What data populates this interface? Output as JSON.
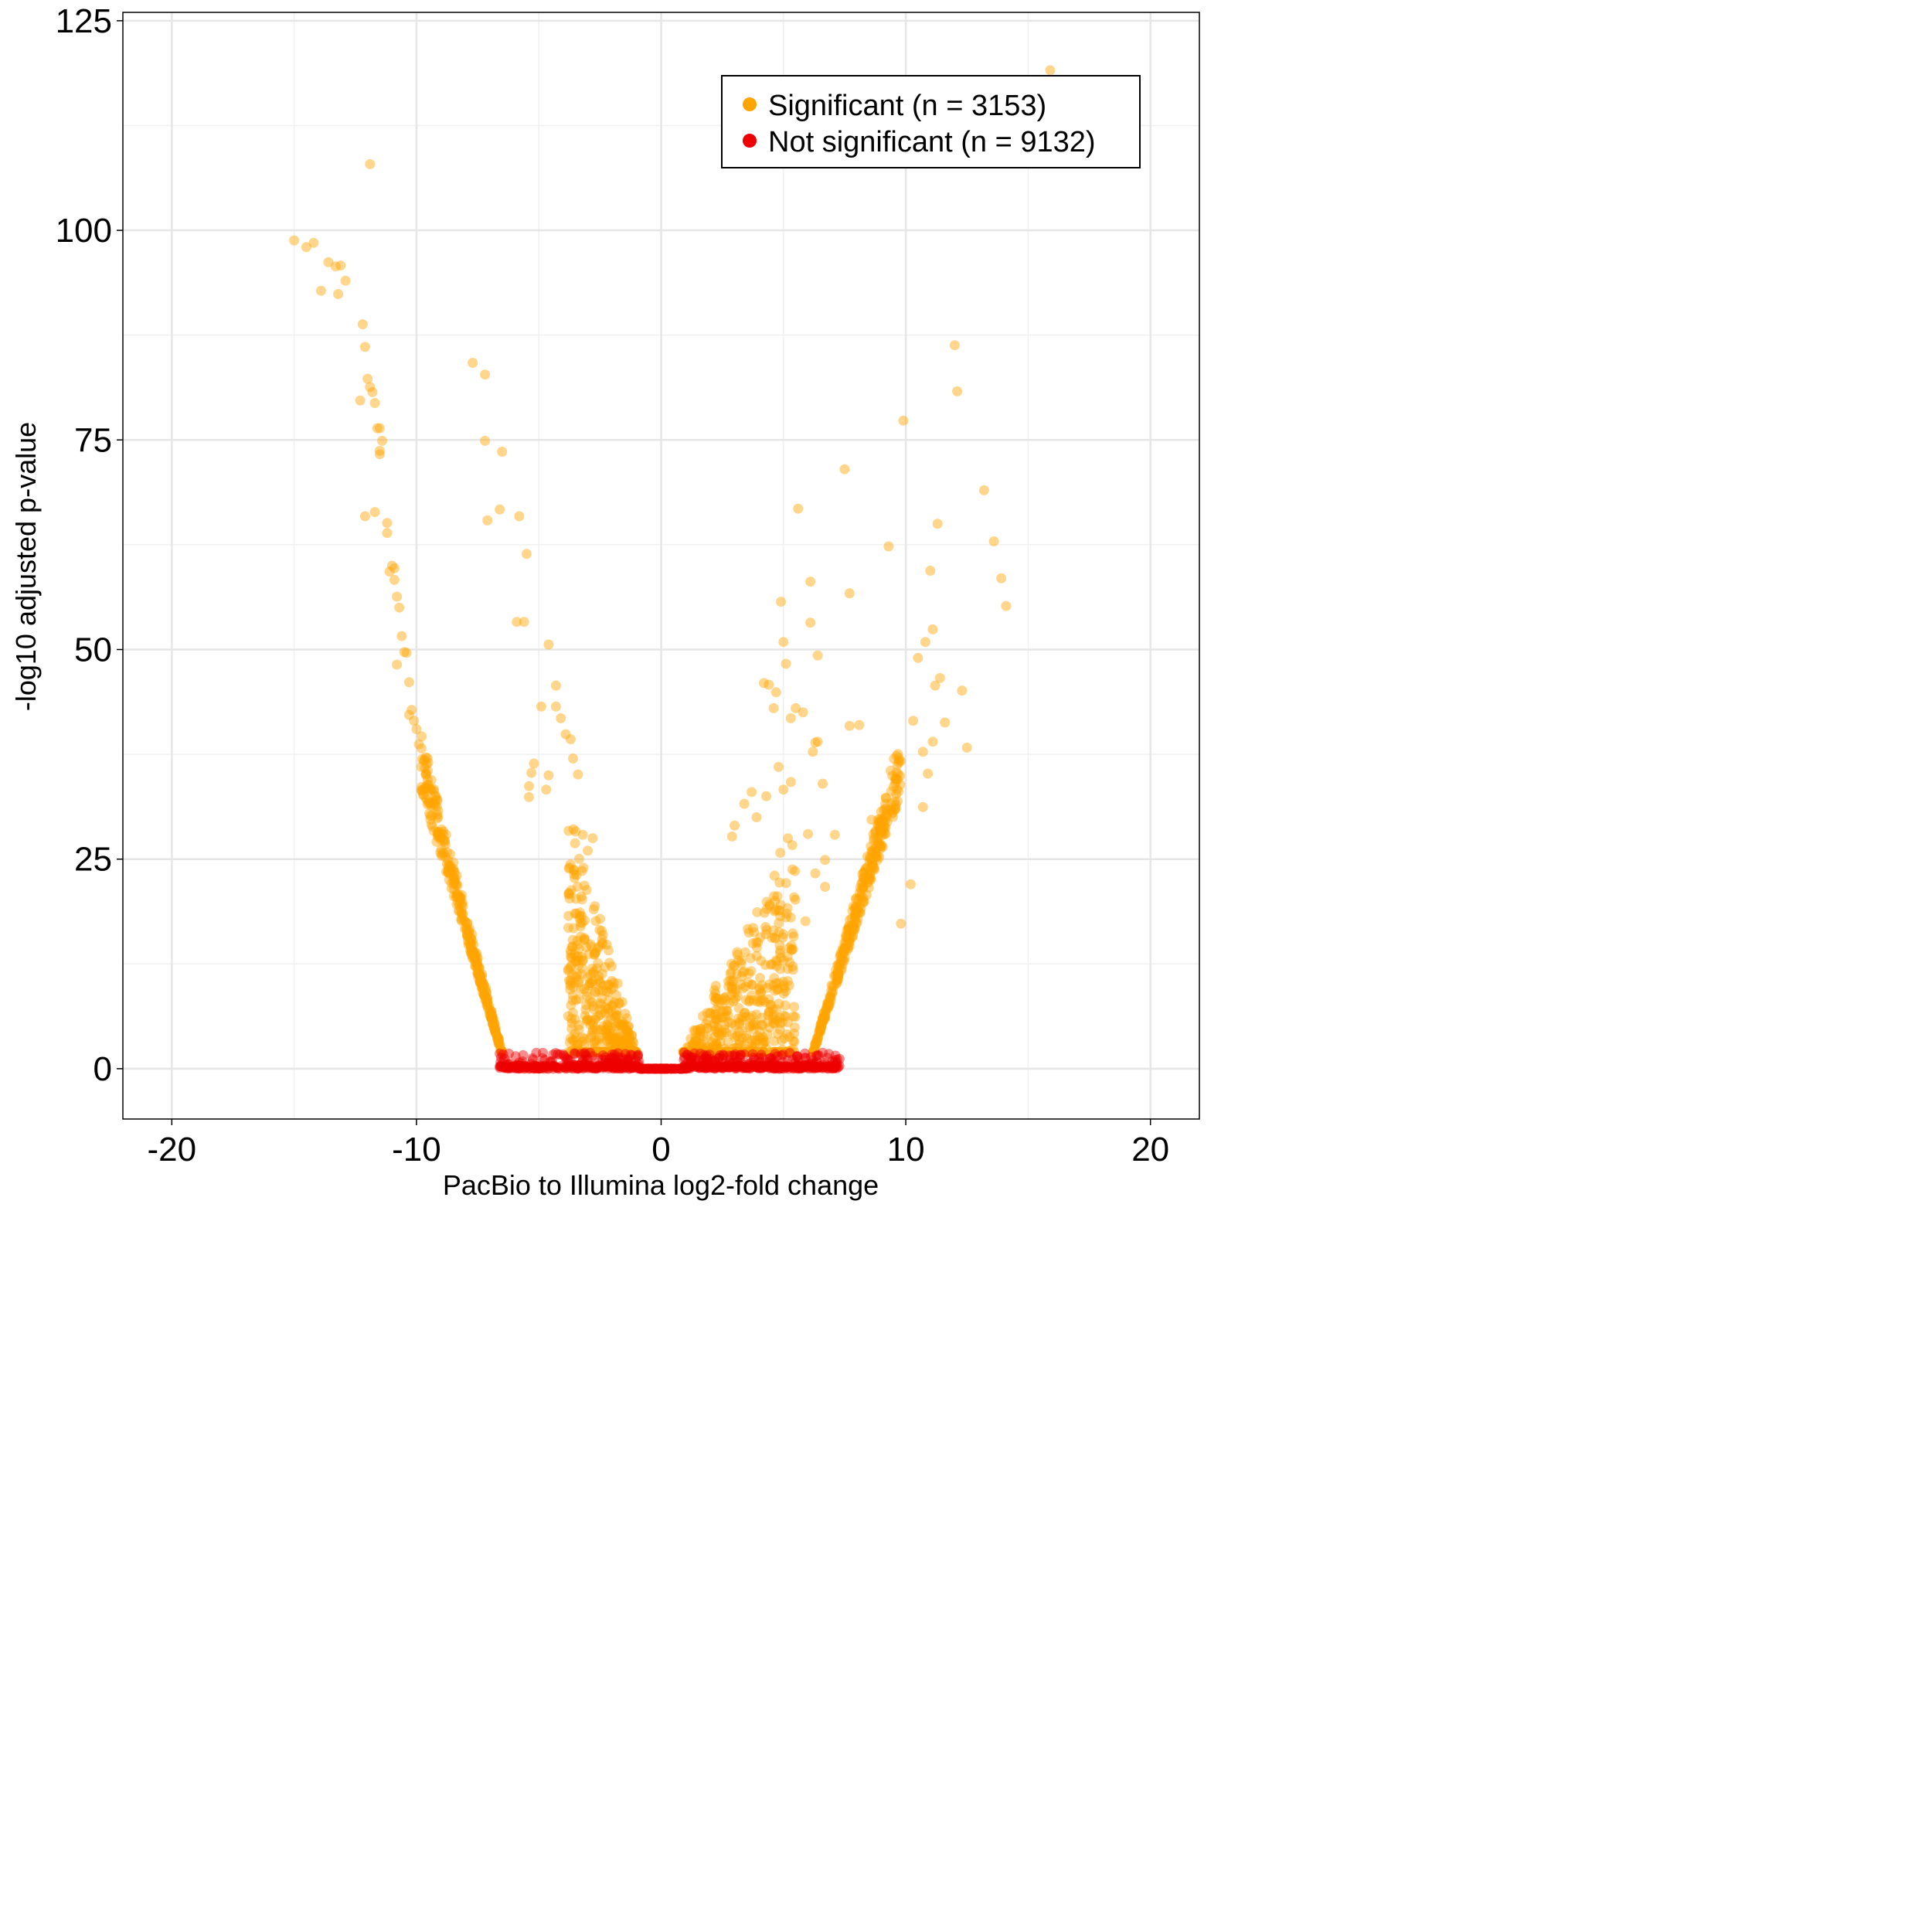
{
  "chart_data": {
    "type": "scatter",
    "title": "",
    "xlabel": "PacBio to Illumina log2-fold change",
    "ylabel": "-log10 adjusted p-value",
    "xlim": [
      -22,
      22
    ],
    "ylim": [
      -6,
      126
    ],
    "xticks": [
      -20,
      -10,
      0,
      10,
      20
    ],
    "xtick_labels": [
      "-20",
      "-10",
      "0",
      "10",
      "20"
    ],
    "yticks": [
      0,
      25,
      50,
      75,
      100,
      125
    ],
    "ytick_labels": [
      "0",
      "25",
      "50",
      "75",
      "100",
      "125"
    ],
    "grid": true,
    "legend_position": "top-right",
    "series": [
      {
        "name": "Significant (n = 3153)",
        "color": "#FFA500",
        "opacity": 0.45,
        "x": [
          -15.0,
          -14.5,
          -14.2,
          -13.9,
          -13.6,
          -13.3,
          -13.2,
          -13.1,
          -12.9,
          -12.2,
          -12.1,
          -12.0,
          -11.9,
          -12.3,
          -11.8,
          -11.7,
          -11.9,
          -11.6,
          -11.5,
          -11.4,
          -11.5,
          -11.5,
          -12.1,
          -11.7,
          -11.2,
          -11.2,
          -11.1,
          -10.9,
          -10.9,
          -11.0,
          -10.8,
          -10.7,
          -10.6,
          -10.5,
          -10.8,
          -10.4,
          -10.3,
          -10.3,
          -10.2,
          -10.1,
          -10.0,
          -9.9,
          -9.8,
          -7.7,
          -7.2,
          -7.2,
          -6.5,
          -7.1,
          -6.6,
          -5.8,
          -5.5,
          -5.9,
          -5.6,
          -4.6,
          -4.3,
          -4.9,
          -4.3,
          -4.1,
          -3.9,
          -3.7,
          -3.6,
          -3.4,
          -5.2,
          -5.3,
          -4.6,
          -5.4,
          -5.4,
          -4.7,
          -3.5,
          -3.2,
          -2.8,
          -3.0,
          5.6,
          4.9,
          6.1,
          6.1,
          5.0,
          7.5,
          7.7,
          6.4,
          5.1,
          4.7,
          4.4,
          4.2,
          4.6,
          5.5,
          5.3,
          6.3,
          6.2,
          5.8,
          8.1,
          9.3,
          9.9,
          11.0,
          11.1,
          11.3,
          12.0,
          12.1,
          13.2,
          13.6,
          13.9,
          14.1,
          15.9,
          11.6,
          12.3,
          12.5,
          10.8,
          11.2,
          10.5,
          10.3,
          10.7,
          10.9,
          11.4,
          11.1,
          10.7,
          10.2,
          9.8,
          8.6,
          7.7,
          6.6,
          6.4,
          6.0,
          5.3,
          5.0,
          4.8,
          3.9,
          4.3,
          3.7,
          3.4,
          3.0,
          2.9,
          6.7,
          5.9,
          6.3,
          6.7,
          7.1
        ],
        "y": [
          98.8,
          98.0,
          98.5,
          92.8,
          96.2,
          95.7,
          92.4,
          95.8,
          94.0,
          88.8,
          86.1,
          82.3,
          107.9,
          79.7,
          80.7,
          79.4,
          81.3,
          76.4,
          76.4,
          74.9,
          73.3,
          73.7,
          65.9,
          66.4,
          65.1,
          63.9,
          59.3,
          59.7,
          58.3,
          60.0,
          56.3,
          55.0,
          51.6,
          49.7,
          48.2,
          49.6,
          46.1,
          42.2,
          42.8,
          41.5,
          40.5,
          38.7,
          36.0,
          84.2,
          82.8,
          74.9,
          73.6,
          65.4,
          66.7,
          65.9,
          61.4,
          53.3,
          53.3,
          50.6,
          45.7,
          43.2,
          43.2,
          41.8,
          39.9,
          39.3,
          37.0,
          35.1,
          36.4,
          35.3,
          35.0,
          33.7,
          32.4,
          33.3,
          28.3,
          27.9,
          27.5,
          26.0,
          66.8,
          55.7,
          58.1,
          53.2,
          50.9,
          71.5,
          56.7,
          49.3,
          48.3,
          44.9,
          45.8,
          46.0,
          43.0,
          43.0,
          41.8,
          38.9,
          37.8,
          42.5,
          41.0,
          62.3,
          77.3,
          59.4,
          52.4,
          65.0,
          86.3,
          80.8,
          69.0,
          62.9,
          58.5,
          55.2,
          119.1,
          41.3,
          45.1,
          38.3,
          50.9,
          45.7,
          49.0,
          41.5,
          37.8,
          35.2,
          46.6,
          39.0,
          31.2,
          22.0,
          17.3,
          29.7,
          40.9,
          34.0,
          39.0,
          28.0,
          34.2,
          33.3,
          36.0,
          30.0,
          32.5,
          33.0,
          31.6,
          29.0,
          27.7,
          24.9,
          17.6,
          23.3,
          21.7,
          27.9
        ],
        "shape_note": "dense cluster"
      },
      {
        "name": "Not significant (n = 9132)",
        "color": "#EE0000",
        "opacity": 0.45,
        "x": [
          -6.6,
          -6.4,
          -6.2,
          -6.0,
          -5.8,
          -5.6,
          -5.4,
          -5.2,
          -5.0,
          -4.8,
          -4.6,
          -4.4,
          -4.2,
          -3.9,
          -3.6,
          -3.4,
          -3.2,
          -3.0,
          -2.8,
          -2.6,
          -2.4,
          -2.2,
          -2.0,
          -1.8,
          -1.6,
          -1.4,
          -1.2,
          -1.0,
          -0.8,
          -0.6,
          -0.4,
          -0.2,
          0.0,
          0.2,
          0.4,
          0.6,
          0.8,
          1.0,
          1.2,
          1.4,
          1.6,
          1.8,
          2.0,
          2.2,
          2.4,
          2.6,
          2.8,
          3.0,
          3.2,
          3.4,
          3.6,
          3.8,
          4.0,
          4.2,
          4.4,
          4.6,
          4.8,
          5.0,
          5.2,
          5.4,
          5.6,
          5.8,
          6.0,
          6.2,
          6.4,
          6.6,
          6.8,
          7.0,
          7.2
        ],
        "y": [
          1.8,
          1.2,
          0.6,
          0.1,
          0.0,
          0.0,
          0.0,
          0.0,
          0.0,
          0.0,
          0.0,
          0.0,
          0.0,
          0.0,
          0.0,
          0.0,
          0.9,
          0.4,
          1.5,
          0.2,
          1.1,
          0.6,
          1.7,
          0.3,
          1.3,
          0.8,
          1.6,
          0.2,
          0.0,
          0.0,
          0.0,
          0.0,
          0.0,
          0.0,
          0.0,
          0.0,
          0.0,
          0.5,
          1.4,
          0.7,
          1.8,
          0.3,
          1.2,
          0.9,
          1.6,
          0.2,
          1.0,
          1.5,
          0.4,
          1.7,
          0.6,
          1.1,
          1.3,
          0.2,
          0.8,
          0.0,
          0.0,
          0.0,
          0.0,
          0.0,
          0.0,
          0.1,
          0.5,
          1.0,
          1.6,
          1.9,
          1.3,
          0.9,
          1.1
        ]
      }
    ]
  }
}
